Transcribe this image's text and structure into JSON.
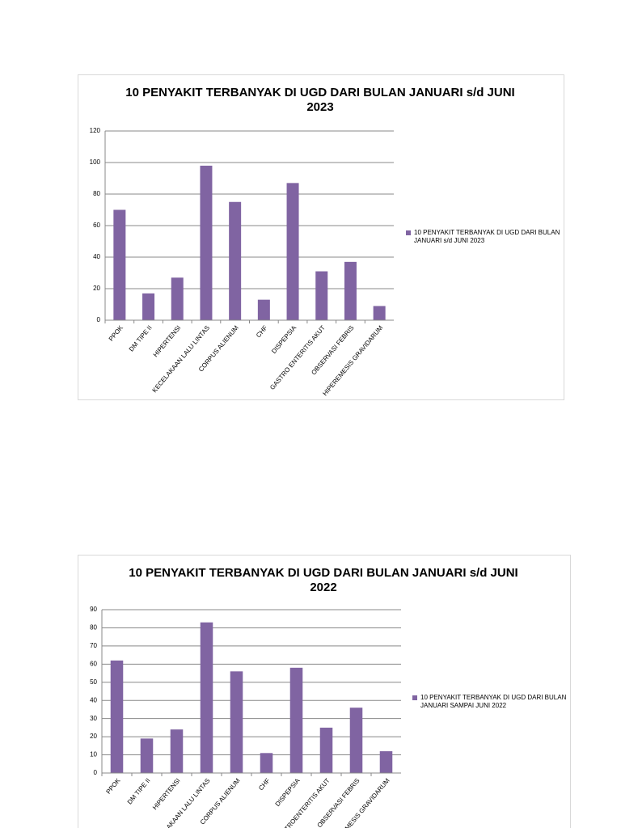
{
  "chart_data": [
    {
      "type": "bar",
      "title": "10 PENYAKIT TERBANYAK DI UGD DARI BULAN JANUARI s/d  JUNI 2023",
      "categories": [
        "PPOK",
        "DM TIPE II",
        "HIPERTENSI",
        "KECELAKAAN LALU LINTAS",
        "CORPUS ALIENUM",
        "CHF",
        "DISPEPSIA",
        "GASTRO ENTERITIS AKUT",
        "OBSERVASI FEBRIS",
        "HIPEREMESIS GRAVIDARUM"
      ],
      "series": [
        {
          "name": "10 PENYAKIT TERBANYAK DI UGD DARI BULAN JANUARI s/d JUNI 2023",
          "color": "#8064a2",
          "values": [
            70,
            17,
            27,
            98,
            75,
            13,
            87,
            31,
            37,
            9
          ]
        }
      ],
      "ylim": [
        0,
        120
      ],
      "yticks": [
        0,
        20,
        40,
        60,
        80,
        100,
        120
      ],
      "grid": true,
      "legend": "right"
    },
    {
      "type": "bar",
      "title": "10 PENYAKIT TERBANYAK DI UGD DARI BULAN JANUARI s/d JUNI 2022",
      "categories": [
        "PPOK",
        "DM TIPE II",
        "HIPERTENSI",
        "KECELAKAAN LALU LINTAS",
        "CORPUS ALIENUM",
        "CHF",
        "DISPEPSIA",
        "GASTROENTERITIS AKUT",
        "OBSERVASI FEBRIS",
        "HIPEREMESIS GRAVIDARUM"
      ],
      "series": [
        {
          "name": "10 PENYAKIT TERBANYAK DI UGD DARI BULAN JANUARI SAMPAI JUNI 2022",
          "color": "#8064a2",
          "values": [
            62,
            19,
            24,
            83,
            56,
            11,
            58,
            25,
            36,
            12
          ]
        }
      ],
      "ylim": [
        0,
        90
      ],
      "yticks": [
        0,
        10,
        20,
        30,
        40,
        50,
        60,
        70,
        80,
        90
      ],
      "grid": true,
      "legend": "right"
    }
  ]
}
